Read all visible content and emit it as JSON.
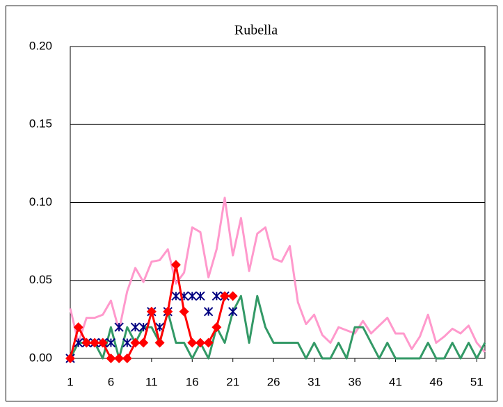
{
  "chart_data": {
    "type": "line",
    "title": "Rubella",
    "x": [
      1,
      2,
      3,
      4,
      5,
      6,
      7,
      8,
      9,
      10,
      11,
      12,
      13,
      14,
      15,
      16,
      17,
      18,
      19,
      20,
      21,
      22,
      23,
      24,
      25,
      26,
      27,
      28,
      29,
      30,
      31,
      32,
      33,
      34,
      35,
      36,
      37,
      38,
      39,
      40,
      41,
      42,
      43,
      44,
      45,
      46,
      47,
      48,
      49,
      50,
      51,
      52
    ],
    "xlim": [
      1,
      52
    ],
    "xticks": [
      1,
      6,
      11,
      16,
      21,
      26,
      31,
      36,
      41,
      46,
      51
    ],
    "ylim": [
      0,
      0.2
    ],
    "yticks": [
      {
        "value": 0,
        "label": "0.00"
      },
      {
        "value": 0.05,
        "label": "0.05"
      },
      {
        "value": 0.1,
        "label": "0.10"
      },
      {
        "value": 0.15,
        "label": "0.15"
      },
      {
        "value": 0.2,
        "label": "0.20"
      }
    ],
    "grid": true,
    "series": [
      {
        "color": "#ff99cc",
        "marker": "none",
        "line": true,
        "values": [
          0.032,
          0.01,
          0.026,
          0.026,
          0.028,
          0.037,
          0.018,
          0.043,
          0.058,
          0.049,
          0.062,
          0.063,
          0.07,
          0.048,
          0.055,
          0.084,
          0.081,
          0.052,
          0.07,
          0.103,
          0.066,
          0.09,
          0.056,
          0.08,
          0.084,
          0.064,
          0.062,
          0.072,
          0.036,
          0.022,
          0.028,
          0.015,
          0.01,
          0.02,
          0.018,
          0.016,
          0.024,
          0.016,
          0.021,
          0.026,
          0.016,
          0.016,
          0.006,
          0.014,
          0.028,
          0.01,
          0.014,
          0.019,
          0.016,
          0.021,
          0.01,
          0.004
        ]
      },
      {
        "color": "#339966",
        "marker": "none",
        "line": true,
        "values": [
          0,
          0.01,
          0.01,
          0.01,
          0,
          0.02,
          0,
          0.02,
          0.01,
          0.02,
          0.02,
          0.01,
          0.03,
          0.01,
          0.01,
          0,
          0.01,
          0,
          0.02,
          0.01,
          0.03,
          0.04,
          0.01,
          0.04,
          0.02,
          0.01,
          0.01,
          0.01,
          0.01,
          0,
          0.01,
          0,
          0,
          0.01,
          0,
          0.02,
          0.02,
          0.01,
          0,
          0.01,
          0,
          0,
          0,
          0,
          0.01,
          0,
          0,
          0.01,
          0,
          0.01,
          0,
          0.01
        ]
      },
      {
        "color": "#000080",
        "marker": "asterisk",
        "line": false,
        "values": [
          0,
          0.01,
          0.01,
          0.01,
          0.01,
          0.01,
          0.02,
          0.01,
          0.02,
          0.02,
          0.03,
          0.02,
          0.03,
          0.04,
          0.04,
          0.04,
          0.04,
          0.03,
          0.04,
          0.04,
          0.03,
          null,
          null,
          null,
          null,
          null,
          null,
          null,
          null,
          null,
          null,
          null,
          null,
          null,
          null,
          null,
          null,
          null,
          null,
          null,
          null,
          null,
          null,
          null,
          null,
          null,
          null,
          null,
          null,
          null,
          null,
          null
        ]
      },
      {
        "color": "#ff0000",
        "marker": "diamond",
        "line": true,
        "values": [
          0,
          0.02,
          0.01,
          0.01,
          0.01,
          0,
          0,
          0,
          0.01,
          0.01,
          0.03,
          0.01,
          0.03,
          0.06,
          0.03,
          0.01,
          0.01,
          0.01,
          0.02,
          0.04,
          0.04,
          null,
          null,
          null,
          null,
          null,
          null,
          null,
          null,
          null,
          null,
          null,
          null,
          null,
          null,
          null,
          null,
          null,
          null,
          null,
          null,
          null,
          null,
          null,
          null,
          null,
          null,
          null,
          null,
          null,
          null,
          null
        ]
      }
    ]
  }
}
